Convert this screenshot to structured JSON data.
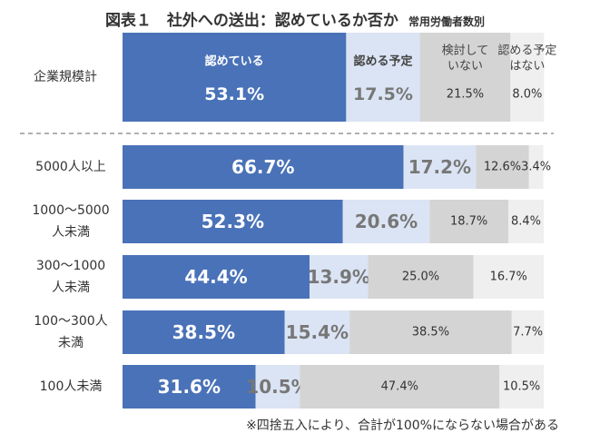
{
  "title": "図表１　社外への送出：認めているか否か",
  "subtitle": "常用労働者数別",
  "footnote": "※四捨五入により、合計が100%にならない場合がある",
  "colors": {
    "c1": "#4a72b8",
    "c2": "#dbe4f4",
    "c3": "#d4d4d4",
    "c4": "#efefef",
    "divider": "#808080"
  },
  "chart_data": {
    "type": "bar",
    "orientation": "horizontal",
    "stacked": true,
    "percent": true,
    "categories": [
      "企業規模計",
      "5000人以上",
      "1000～5000人未満",
      "300～1000人未満",
      "100～300人未満",
      "100人未満"
    ],
    "category_lines": [
      [
        "企業規模計"
      ],
      [
        "5000人以上"
      ],
      [
        "1000～5000",
        "人未満"
      ],
      [
        "300～1000",
        "人未満"
      ],
      [
        "100～300人",
        "未満"
      ],
      [
        "100人未満"
      ]
    ],
    "series": [
      {
        "name": "認めている",
        "values": [
          53.1,
          66.7,
          52.3,
          44.4,
          38.5,
          31.6
        ]
      },
      {
        "name": "認める予定",
        "values": [
          17.5,
          17.2,
          20.6,
          13.9,
          15.4,
          10.5
        ]
      },
      {
        "name": "検討していない",
        "name_lines": [
          "検討して",
          "いない"
        ],
        "values": [
          21.5,
          12.6,
          18.7,
          25.0,
          38.5,
          47.4
        ]
      },
      {
        "name": "認める予定はない",
        "name_lines": [
          "認める予定",
          "はない"
        ],
        "values": [
          8.0,
          3.4,
          8.4,
          16.7,
          7.7,
          10.5
        ]
      }
    ],
    "xlim": [
      0,
      100
    ],
    "grid": false,
    "legend": "inside first bar"
  }
}
